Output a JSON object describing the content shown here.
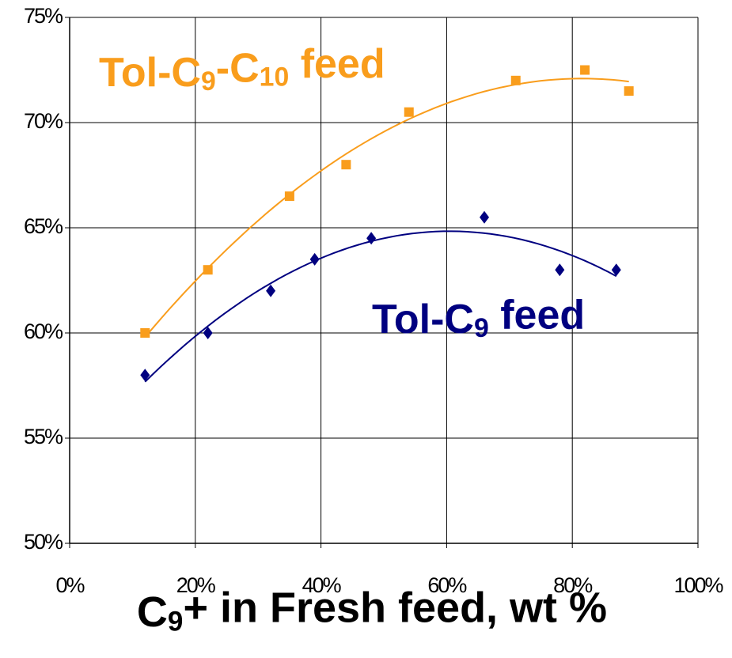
{
  "chart_data": {
    "type": "scatter",
    "x_label": "C9+ in Fresh feed, wt %",
    "series": [
      {
        "name": "Tol-C9-C10 feed",
        "color": "#f99d1c",
        "marker": "square",
        "x": [
          12,
          22,
          35,
          44,
          54,
          71,
          82,
          89
        ],
        "values": [
          60,
          63,
          66.5,
          68,
          70.5,
          72,
          72.5,
          71.5
        ]
      },
      {
        "name": "Tol-C9 feed",
        "color": "#000080",
        "marker": "diamond",
        "x": [
          12,
          22,
          32,
          39,
          48,
          66,
          78,
          87
        ],
        "values": [
          58,
          60,
          62,
          63.5,
          64.5,
          65.5,
          63,
          63
        ]
      }
    ],
    "trendline": "polynomial",
    "xlim": [
      0,
      100
    ],
    "xticks": [
      {
        "value": 0,
        "label": "0%"
      },
      {
        "value": 20,
        "label": "20%"
      },
      {
        "value": 40,
        "label": "40%"
      },
      {
        "value": 60,
        "label": "60%"
      },
      {
        "value": 80,
        "label": "80%"
      },
      {
        "value": 100,
        "label": "100%"
      }
    ],
    "ylim": [
      50,
      75
    ],
    "yticks": [
      {
        "value": 50,
        "label": "50%"
      },
      {
        "value": 55,
        "label": "55%"
      },
      {
        "value": 60,
        "label": "60%"
      },
      {
        "value": 65,
        "label": "65%"
      },
      {
        "value": 70,
        "label": "70%"
      },
      {
        "value": 75,
        "label": "75%"
      }
    ],
    "grid": true
  }
}
